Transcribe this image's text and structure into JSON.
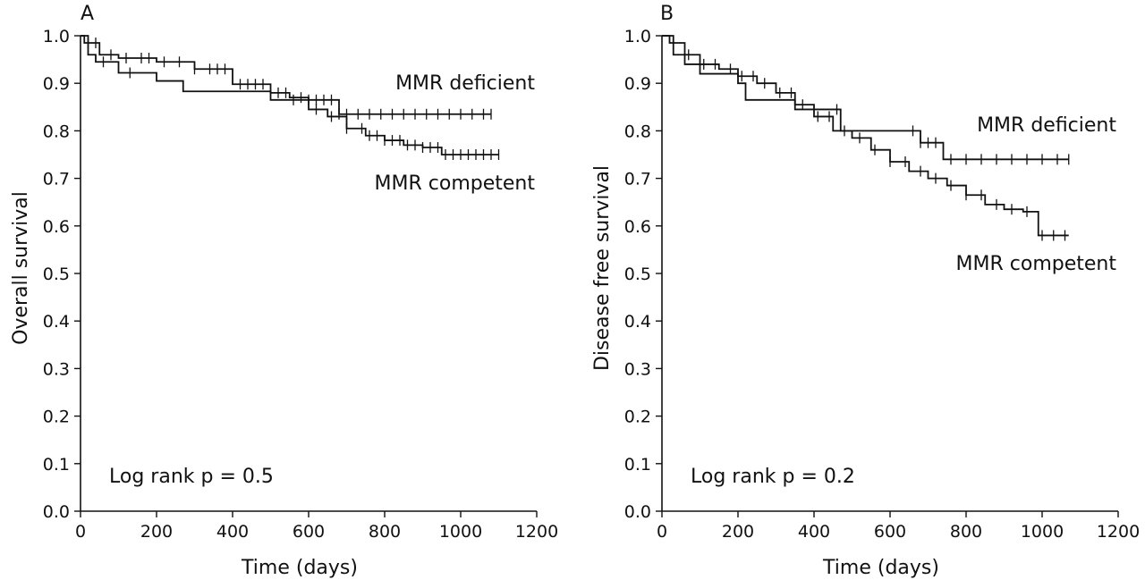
{
  "chart_data": [
    {
      "type": "line",
      "panel_label": "A",
      "xlabel": "Time (days)",
      "ylabel": "Overall survival",
      "xlim": [
        0,
        1200
      ],
      "ylim": [
        0,
        1.0
      ],
      "x_ticks": [
        "0",
        "200",
        "400",
        "600",
        "800",
        "1000",
        "1200"
      ],
      "y_ticks": [
        "0.0",
        "0.1",
        "0.2",
        "0.3",
        "0.4",
        "0.5",
        "0.6",
        "0.7",
        "0.8",
        "0.9",
        "1.0"
      ],
      "annotation": "Log rank p = 0.5",
      "series": [
        {
          "name": "MMR deficient",
          "x": [
            0,
            20,
            40,
            100,
            200,
            270,
            500,
            680,
            1080
          ],
          "y": [
            1.0,
            0.96,
            0.945,
            0.922,
            0.905,
            0.883,
            0.865,
            0.835,
            0.835
          ],
          "censored": [
            60,
            130,
            560,
            600,
            620,
            640,
            660,
            680,
            700,
            730,
            760,
            790,
            820,
            850,
            880,
            910,
            940,
            970,
            1000,
            1030,
            1060,
            1080
          ]
        },
        {
          "name": "MMR competent",
          "x": [
            0,
            10,
            50,
            100,
            200,
            300,
            400,
            500,
            550,
            600,
            650,
            700,
            750,
            800,
            850,
            900,
            950,
            1100
          ],
          "y": [
            1.0,
            0.985,
            0.96,
            0.953,
            0.945,
            0.93,
            0.898,
            0.88,
            0.87,
            0.845,
            0.83,
            0.805,
            0.79,
            0.78,
            0.77,
            0.765,
            0.75,
            0.75
          ],
          "censored": [
            20,
            40,
            80,
            120,
            160,
            180,
            220,
            260,
            300,
            340,
            360,
            380,
            420,
            440,
            460,
            480,
            520,
            540,
            580,
            620,
            660,
            700,
            740,
            760,
            780,
            800,
            820,
            840,
            860,
            880,
            900,
            920,
            940,
            960,
            980,
            1000,
            1020,
            1040,
            1060,
            1080,
            1100
          ]
        }
      ]
    },
    {
      "type": "line",
      "panel_label": "B",
      "xlabel": "Time (days)",
      "ylabel": "Disease free survival",
      "xlim": [
        0,
        1200
      ],
      "ylim": [
        0,
        1.0
      ],
      "x_ticks": [
        "0",
        "200",
        "400",
        "600",
        "800",
        "1000",
        "1200"
      ],
      "y_ticks": [
        "0.0",
        "0.1",
        "0.2",
        "0.3",
        "0.4",
        "0.5",
        "0.6",
        "0.7",
        "0.8",
        "0.9",
        "1.0"
      ],
      "annotation": "Log rank p = 0.2",
      "series": [
        {
          "name": "MMR deficient",
          "x": [
            0,
            30,
            60,
            100,
            200,
            220,
            300,
            350,
            430,
            470,
            680,
            740,
            1070
          ],
          "y": [
            1.0,
            0.96,
            0.94,
            0.92,
            0.9,
            0.865,
            0.865,
            0.845,
            0.845,
            0.8,
            0.775,
            0.74,
            0.74
          ],
          "censored": [
            460,
            660,
            680,
            700,
            720,
            760,
            800,
            840,
            880,
            920,
            960,
            1000,
            1040,
            1070
          ]
        },
        {
          "name": "MMR competent",
          "x": [
            0,
            20,
            60,
            100,
            150,
            200,
            250,
            300,
            350,
            400,
            450,
            500,
            550,
            600,
            650,
            700,
            750,
            800,
            850,
            900,
            950,
            990,
            1070
          ],
          "y": [
            1.0,
            0.985,
            0.96,
            0.94,
            0.93,
            0.915,
            0.9,
            0.88,
            0.855,
            0.83,
            0.8,
            0.785,
            0.76,
            0.735,
            0.715,
            0.7,
            0.685,
            0.665,
            0.645,
            0.635,
            0.63,
            0.58,
            0.58
          ],
          "censored": [
            30,
            70,
            110,
            140,
            180,
            210,
            240,
            270,
            310,
            340,
            370,
            410,
            440,
            480,
            520,
            560,
            600,
            640,
            680,
            720,
            760,
            800,
            840,
            880,
            920,
            960,
            1000,
            1030,
            1060
          ]
        }
      ]
    }
  ]
}
